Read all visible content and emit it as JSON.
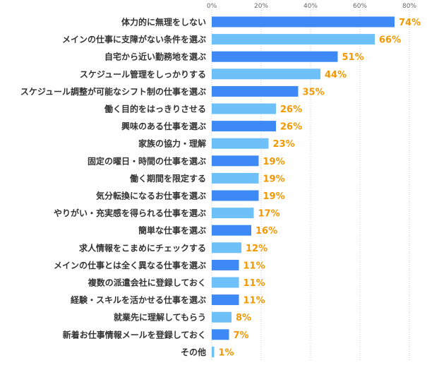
{
  "chart_data": {
    "type": "bar",
    "orientation": "horizontal",
    "categories": [
      "体力的に無理をしない",
      "メインの仕事に支障がない条件を選ぶ",
      "自宅から近い勤務地を選ぶ",
      "スケジュール管理をしっかりする",
      "スケジュール調整が可能なシフト制の仕事を選ぶ",
      "働く目的をはっきりさせる",
      "興味のある仕事を選ぶ",
      "家族の協力・理解",
      "固定の曜日・時間の仕事を選ぶ",
      "働く期間を限定する",
      "気分転換になるお仕事を選ぶ",
      "やりがい・充実感を得られる仕事を選ぶ",
      "簡単な仕事を選ぶ",
      "求人情報をこまめにチェックする",
      "メインの仕事とは全く異なる仕事を選ぶ",
      "複数の派遣会社に登録しておく",
      "経験・スキルを活かせる仕事を選ぶ",
      "就業先に理解してもらう",
      "新着お仕事情報メールを登録しておく",
      "その他"
    ],
    "values": [
      74,
      66,
      51,
      44,
      35,
      26,
      26,
      23,
      19,
      19,
      19,
      17,
      16,
      12,
      11,
      11,
      11,
      8,
      7,
      1
    ],
    "value_labels": [
      "74%",
      "66%",
      "51%",
      "44%",
      "35%",
      "26%",
      "26%",
      "23%",
      "19%",
      "19%",
      "19%",
      "17%",
      "16%",
      "12%",
      "11%",
      "11%",
      "11%",
      "8%",
      "7%",
      "1%"
    ],
    "xlim": [
      0,
      80
    ],
    "xticks": [
      0,
      20,
      40,
      60,
      80
    ],
    "xtick_labels": [
      "0%",
      "20%",
      "40%",
      "60%",
      "80%"
    ],
    "grid": true,
    "title": "",
    "xlabel": "",
    "ylabel": "",
    "colors": {
      "dark_bar": "#3d8af7",
      "light_bar": "#6dc1f8",
      "value_label": "#f39800",
      "category_label": "#333333",
      "tick_label": "#666666",
      "grid": "#c8c8c8"
    }
  }
}
